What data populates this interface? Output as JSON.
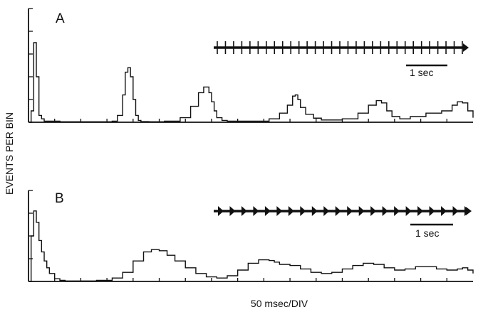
{
  "chart_data": [
    {
      "type": "histogram",
      "panel_label": "A",
      "ylabel": "EVENTS PER BIN",
      "xlabel": "50 msec/DIV",
      "x_unit": "ms",
      "xlim": [
        0,
        850
      ],
      "ylim": [
        0,
        5
      ],
      "y_ticks": [
        0,
        1,
        2,
        3,
        4,
        5
      ],
      "x_tick_interval": 50,
      "grid": false,
      "inset": {
        "description": "spike train",
        "scale_bar_label": "1 sec",
        "scale_bar_value": 1,
        "scale_bar_unit": "sec"
      },
      "series": [
        {
          "x": [
            0,
            5,
            10,
            15,
            20,
            25,
            30,
            60,
            100,
            140,
            160,
            170,
            180,
            185,
            190,
            195,
            200,
            205,
            210,
            215,
            220,
            230,
            260,
            290,
            310,
            325,
            335,
            345,
            350,
            355,
            360,
            370,
            380,
            420,
            460,
            480,
            495,
            505,
            510,
            515,
            520,
            530,
            545,
            560,
            600,
            630,
            650,
            665,
            675,
            685,
            695,
            710,
            730,
            760,
            790,
            810,
            820,
            830,
            840,
            850
          ],
          "y": [
            0,
            0.5,
            3.5,
            2.0,
            0.3,
            0.15,
            0.05,
            0.02,
            0.02,
            0.02,
            0.05,
            0.3,
            1.2,
            2.2,
            2.4,
            2.0,
            1.0,
            0.3,
            0.08,
            0.03,
            0.03,
            0.02,
            0.05,
            0.2,
            0.7,
            1.3,
            1.55,
            1.3,
            0.9,
            0.5,
            0.2,
            0.08,
            0.05,
            0.05,
            0.15,
            0.4,
            0.75,
            1.15,
            1.2,
            1.0,
            0.65,
            0.35,
            0.18,
            0.1,
            0.15,
            0.4,
            0.75,
            0.95,
            0.85,
            0.5,
            0.25,
            0.15,
            0.25,
            0.4,
            0.5,
            0.75,
            0.9,
            0.85,
            0.5,
            0.2
          ]
        }
      ]
    },
    {
      "type": "histogram",
      "panel_label": "B",
      "ylabel": "EVENTS PER BIN",
      "xlabel": "50 msec/DIV",
      "x_unit": "ms",
      "xlim": [
        0,
        850
      ],
      "ylim": [
        0,
        4
      ],
      "y_ticks": [
        0,
        1,
        2,
        3,
        4
      ],
      "x_tick_interval": 50,
      "grid": false,
      "inset": {
        "description": "spike train",
        "scale_bar_label": "1 sec",
        "scale_bar_value": 1,
        "scale_bar_unit": "sec"
      },
      "series": [
        {
          "x": [
            0,
            5,
            10,
            15,
            20,
            25,
            30,
            35,
            40,
            50,
            60,
            70,
            80,
            100,
            130,
            160,
            180,
            200,
            220,
            235,
            250,
            265,
            280,
            300,
            320,
            340,
            360,
            380,
            400,
            420,
            440,
            450,
            460,
            470,
            480,
            500,
            520,
            540,
            560,
            580,
            600,
            620,
            640,
            660,
            680,
            700,
            720,
            740,
            760,
            780,
            800,
            820,
            830,
            840,
            850
          ],
          "y": [
            0,
            2.0,
            3.1,
            2.6,
            1.8,
            1.3,
            0.9,
            0.6,
            0.35,
            0.12,
            0.05,
            0.02,
            0.02,
            0.02,
            0.05,
            0.15,
            0.4,
            0.9,
            1.3,
            1.4,
            1.35,
            1.15,
            0.9,
            0.6,
            0.35,
            0.2,
            0.15,
            0.25,
            0.5,
            0.8,
            0.95,
            0.95,
            0.92,
            0.85,
            0.75,
            0.7,
            0.55,
            0.4,
            0.35,
            0.4,
            0.55,
            0.7,
            0.8,
            0.75,
            0.6,
            0.5,
            0.55,
            0.65,
            0.65,
            0.55,
            0.5,
            0.55,
            0.6,
            0.5,
            0.35
          ]
        }
      ]
    }
  ]
}
